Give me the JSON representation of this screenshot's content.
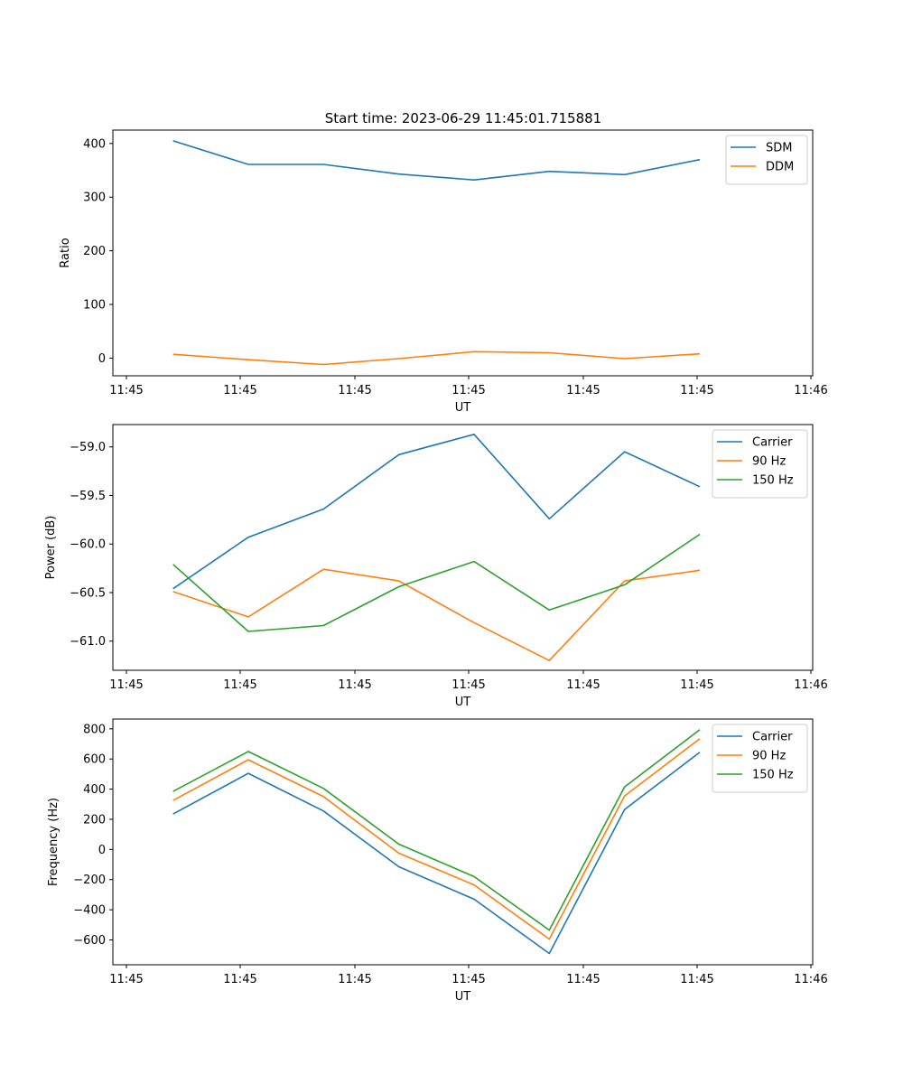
{
  "chart_data": [
    {
      "type": "line",
      "title": "Start time: 2023-06-29 11:45:01.715881",
      "xlabel": "UT",
      "ylabel": "Ratio",
      "x_tick_labels": [
        "11:45",
        "11:45",
        "11:45",
        "11:45",
        "11:45",
        "11:45",
        "11:46"
      ],
      "x": [
        1,
        2,
        3,
        4,
        5,
        6,
        7,
        8
      ],
      "xlim": [
        0.2,
        9.5
      ],
      "ylim": [
        -33,
        425
      ],
      "yticks": [
        0,
        100,
        200,
        300,
        400
      ],
      "legend_position": "top-right",
      "grid": false,
      "series": [
        {
          "name": "SDM",
          "color": "#1f77b4",
          "values": [
            405,
            361,
            361,
            343,
            332,
            348,
            342,
            370
          ]
        },
        {
          "name": "DDM",
          "color": "#ff7f0e",
          "values": [
            7,
            -3,
            -12,
            -1,
            12,
            10,
            -1,
            8
          ]
        }
      ]
    },
    {
      "type": "line",
      "title": "",
      "xlabel": "UT",
      "ylabel": "Power (dB)",
      "x_tick_labels": [
        "11:45",
        "11:45",
        "11:45",
        "11:45",
        "11:45",
        "11:45",
        "11:46"
      ],
      "x": [
        1,
        2,
        3,
        4,
        5,
        6,
        7,
        8
      ],
      "xlim": [
        0.2,
        9.5
      ],
      "ylim": [
        -61.3,
        -58.77
      ],
      "yticks": [
        -61.0,
        -60.5,
        -60.0,
        -59.5,
        -59.0
      ],
      "ytick_labels": [
        "−61.0",
        "−60.5",
        "−60.0",
        "−59.5",
        "−59.0"
      ],
      "legend_position": "top-right",
      "grid": false,
      "series": [
        {
          "name": "Carrier",
          "color": "#1f77b4",
          "values": [
            -60.46,
            -59.93,
            -59.64,
            -59.08,
            -58.87,
            -59.74,
            -59.05,
            -59.41
          ]
        },
        {
          "name": "90 Hz",
          "color": "#ff7f0e",
          "values": [
            -60.49,
            -60.75,
            -60.26,
            -60.38,
            -60.81,
            -61.2,
            -60.38,
            -60.27
          ]
        },
        {
          "name": "150 Hz",
          "color": "#2ca02c",
          "values": [
            -60.21,
            -60.9,
            -60.84,
            -60.44,
            -60.18,
            -60.68,
            -60.42,
            -59.9
          ]
        }
      ]
    },
    {
      "type": "line",
      "title": "",
      "xlabel": "UT",
      "ylabel": "Frequency (Hz)",
      "x_tick_labels": [
        "11:45",
        "11:45",
        "11:45",
        "11:45",
        "11:45",
        "11:45",
        "11:46"
      ],
      "x": [
        1,
        2,
        3,
        4,
        5,
        6,
        7,
        8
      ],
      "xlim": [
        0.2,
        9.5
      ],
      "ylim": [
        -765,
        865
      ],
      "yticks": [
        -600,
        -400,
        -200,
        0,
        200,
        400,
        600,
        800
      ],
      "ytick_labels": [
        "−600",
        "−400",
        "−200",
        "0",
        "200",
        "400",
        "600",
        "800"
      ],
      "legend_position": "top-right",
      "grid": false,
      "series": [
        {
          "name": "Carrier",
          "color": "#1f77b4",
          "values": [
            235,
            505,
            255,
            -115,
            -330,
            -690,
            265,
            645
          ]
        },
        {
          "name": "90 Hz",
          "color": "#ff7f0e",
          "values": [
            325,
            595,
            350,
            -25,
            -235,
            -595,
            355,
            735
          ]
        },
        {
          "name": "150 Hz",
          "color": "#2ca02c",
          "values": [
            385,
            650,
            405,
            35,
            -180,
            -535,
            415,
            795
          ]
        }
      ]
    }
  ]
}
